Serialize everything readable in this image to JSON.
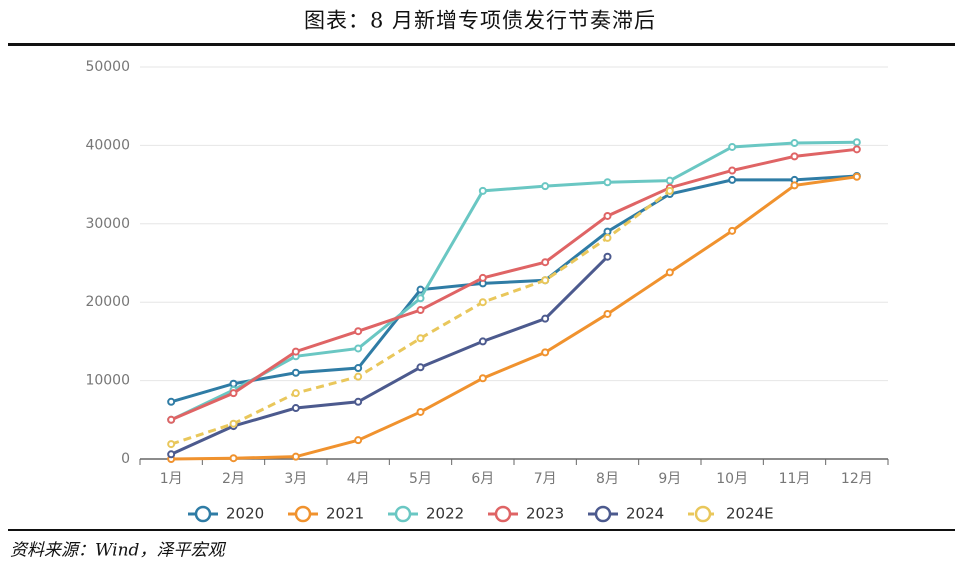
{
  "chart_data": {
    "type": "line",
    "title": "图表：8 月新增专项债发行节奏滞后",
    "source": "资料来源：Wind，泽平宏观",
    "categories": [
      "1月",
      "2月",
      "3月",
      "4月",
      "5月",
      "6月",
      "7月",
      "8月",
      "9月",
      "10月",
      "11月",
      "12月"
    ],
    "series": [
      {
        "name": "2020",
        "color": "#2f7ca5",
        "values": [
          7300,
          9600,
          11000,
          11600,
          21600,
          22400,
          22800,
          29000,
          33800,
          35600,
          35600,
          36100
        ]
      },
      {
        "name": "2021",
        "color": "#f0922e",
        "values": [
          0,
          100,
          300,
          2400,
          6000,
          10300,
          13600,
          18500,
          23800,
          29100,
          34900,
          36000
        ]
      },
      {
        "name": "2022",
        "color": "#6ac7c3",
        "values": [
          5000,
          8800,
          13100,
          14100,
          20500,
          34200,
          34800,
          35300,
          35500,
          39800,
          40300,
          40400
        ]
      },
      {
        "name": "2023",
        "color": "#df6465",
        "values": [
          5000,
          8400,
          13700,
          16300,
          19000,
          23100,
          25100,
          31000,
          34600,
          36800,
          38600,
          39500
        ]
      },
      {
        "name": "2024",
        "color": "#4c5a8e",
        "values": [
          600,
          4200,
          6500,
          7300,
          11700,
          15000,
          17900,
          25800,
          null,
          null,
          null,
          null
        ]
      },
      {
        "name": "2024E",
        "color": "#e9c75b",
        "dashed": true,
        "values": [
          1900,
          4500,
          8400,
          10500,
          15400,
          20000,
          22800,
          28200,
          34200,
          null,
          null,
          null
        ]
      }
    ],
    "ylim": [
      0,
      50000
    ],
    "yticks": [
      0,
      10000,
      20000,
      30000,
      40000,
      50000
    ],
    "grid": true
  }
}
